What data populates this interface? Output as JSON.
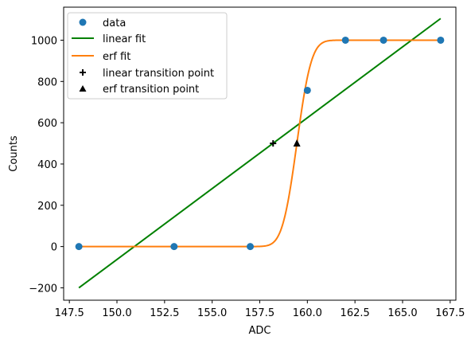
{
  "chart_data": {
    "type": "scatter",
    "xlabel": "ADC",
    "ylabel": "Counts",
    "xlim": [
      147.2,
      167.8
    ],
    "ylim": [
      -260,
      1160
    ],
    "xticks": [
      147.5,
      150.0,
      152.5,
      155.0,
      157.5,
      160.0,
      162.5,
      165.0,
      167.5
    ],
    "xtick_labels": [
      "147.5",
      "150.0",
      "152.5",
      "155.0",
      "157.5",
      "160.0",
      "162.5",
      "165.0",
      "167.5"
    ],
    "yticks": [
      -200,
      0,
      200,
      400,
      600,
      800,
      1000
    ],
    "ytick_labels": [
      "−200",
      "0",
      "200",
      "400",
      "600",
      "800",
      "1000"
    ],
    "grid": false,
    "legend_placement": "top-left",
    "colors": {
      "data": "#1f77b4",
      "linear_fit": "#008000",
      "erf_fit": "#ff7f0e",
      "markers": "#000000"
    },
    "data_series": {
      "name": "data",
      "x": [
        148,
        153,
        157,
        160,
        162,
        164,
        167
      ],
      "y": [
        0,
        0,
        0,
        757,
        1000,
        1000,
        1000
      ]
    },
    "linear_fit": {
      "name": "linear fit",
      "x": [
        148,
        167
      ],
      "y": [
        -200,
        1105
      ]
    },
    "erf_fit": {
      "name": "erf fit",
      "amplitude": 1000,
      "center": 159.45,
      "width": 0.85
    },
    "linear_transition_point": {
      "name": "linear transition point",
      "x": 158.2,
      "y": 500
    },
    "erf_transition_point": {
      "name": "erf transition point",
      "x": 159.45,
      "y": 500
    }
  }
}
